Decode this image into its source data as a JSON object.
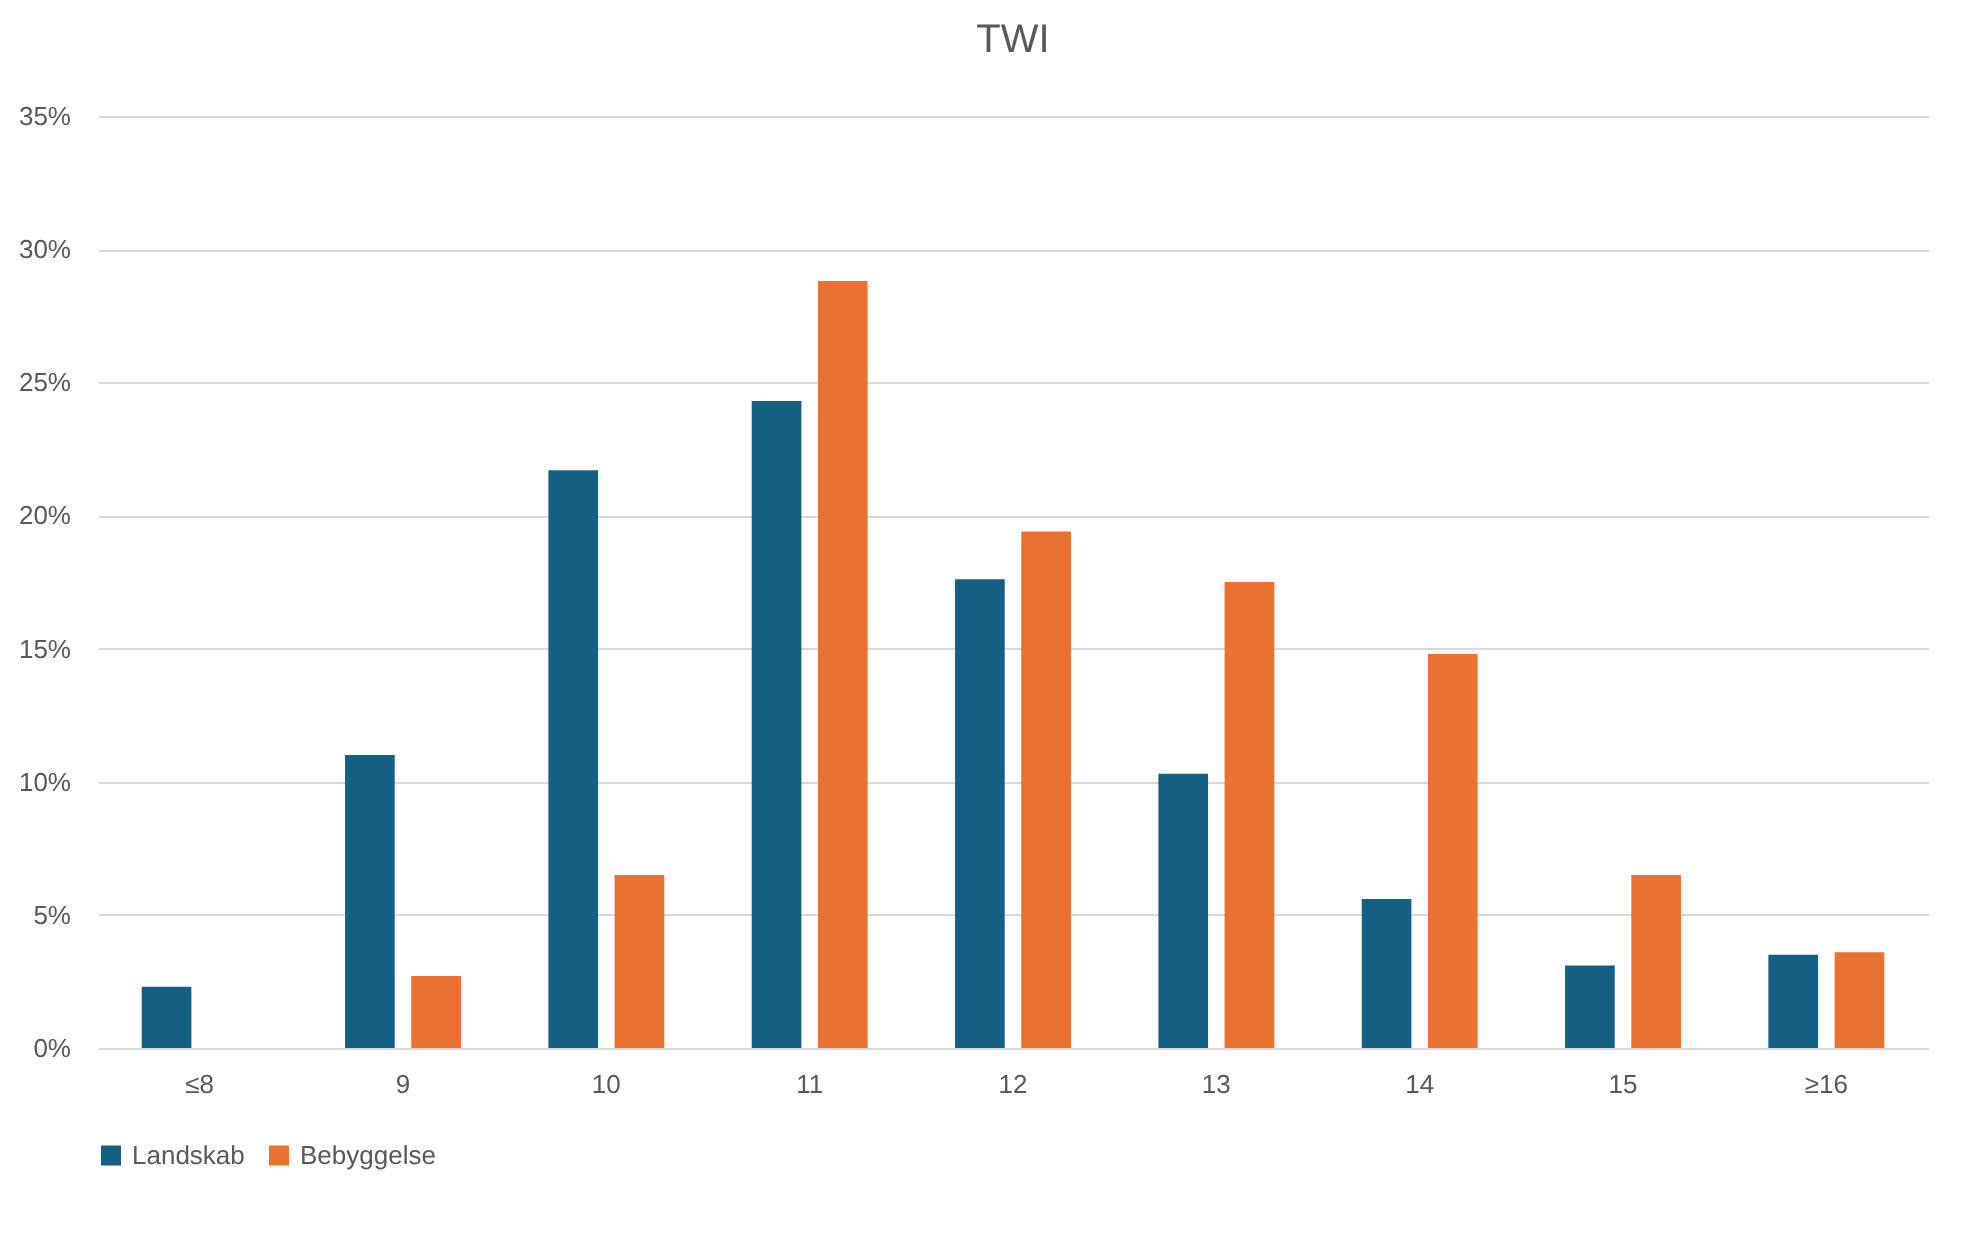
{
  "chart_data": {
    "type": "bar",
    "title": "TWI",
    "categories": [
      "≤8",
      "9",
      "10",
      "11",
      "12",
      "13",
      "14",
      "15",
      "≥16"
    ],
    "series": [
      {
        "name": "Landskab",
        "color": "#156082",
        "values": [
          2.3,
          11.0,
          21.7,
          24.3,
          17.6,
          10.3,
          5.6,
          3.1,
          3.5
        ]
      },
      {
        "name": "Bebyggelse",
        "color": "#e97132",
        "values": [
          0,
          2.7,
          6.5,
          28.8,
          19.4,
          17.5,
          14.8,
          6.5,
          3.6
        ]
      }
    ],
    "ylim": [
      0,
      35
    ],
    "yticks": [
      {
        "value": 0,
        "label": "0%"
      },
      {
        "value": 5,
        "label": "5%"
      },
      {
        "value": 10,
        "label": "10%"
      },
      {
        "value": 15,
        "label": "15%"
      },
      {
        "value": 20,
        "label": "20%"
      },
      {
        "value": 25,
        "label": "25%"
      },
      {
        "value": 30,
        "label": "30%"
      },
      {
        "value": 35,
        "label": "35%"
      }
    ],
    "grid": "y",
    "legend": "bottom"
  }
}
